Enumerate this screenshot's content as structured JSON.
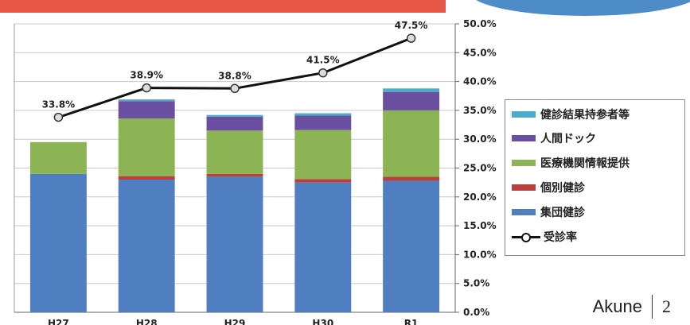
{
  "chart_data": {
    "type": "bar",
    "stacked": true,
    "categories": [
      "H27",
      "H28",
      "H29",
      "H30",
      "R1"
    ],
    "series": [
      {
        "name": "集団健診",
        "color": "#4f7fc1",
        "values": [
          24.0,
          23.0,
          23.5,
          22.5,
          22.8
        ]
      },
      {
        "name": "個別健診",
        "color": "#b8413d",
        "values": [
          0.0,
          0.6,
          0.5,
          0.6,
          0.7
        ]
      },
      {
        "name": "医療機関情報提供",
        "color": "#8cb454",
        "values": [
          5.5,
          10.0,
          7.5,
          8.5,
          11.5
        ]
      },
      {
        "name": "人間ドック",
        "color": "#6a4fa0",
        "values": [
          0.0,
          3.0,
          2.4,
          2.5,
          3.2
        ]
      },
      {
        "name": "健診結果持参者等",
        "color": "#4aacc8",
        "values": [
          0.0,
          0.3,
          0.3,
          0.4,
          0.6
        ]
      }
    ],
    "line": {
      "name": "受診率",
      "color": "#111111",
      "values": [
        33.8,
        38.9,
        38.8,
        41.5,
        47.5
      ],
      "labels": [
        "33.8%",
        "38.9%",
        "38.8%",
        "41.5%",
        "47.5%"
      ]
    },
    "ylim": [
      0,
      50
    ],
    "yticks": [
      "0.0%",
      "5.0%",
      "10.0%",
      "15.0%",
      "20.0%",
      "25.0%",
      "30.0%",
      "35.0%",
      "40.0%",
      "45.0%",
      "50.0%"
    ],
    "grid": true,
    "legend_position": "right",
    "legend_order": [
      "健診結果持参者等",
      "人間ドック",
      "医療機関情報提供",
      "個別健診",
      "集団健診",
      "受診率"
    ]
  },
  "footer": {
    "author": "Akune",
    "page": "2"
  }
}
